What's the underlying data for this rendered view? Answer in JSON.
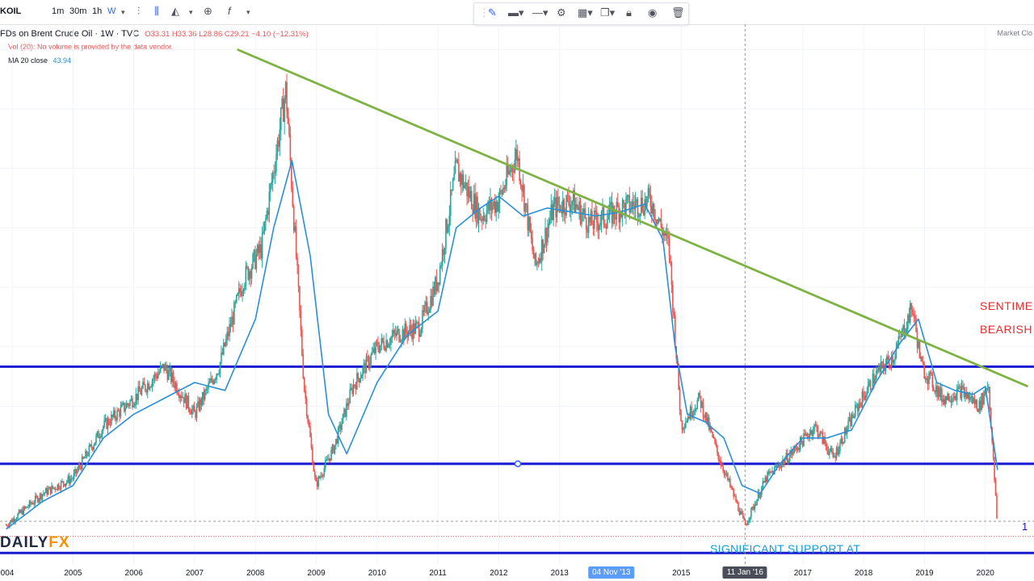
{
  "toolbar": {
    "symbol": "KOIL",
    "timeframes": [
      "1m",
      "30m",
      "1h",
      "W"
    ],
    "active_timeframe": "W"
  },
  "legend": {
    "title": "FDs on Brent Crude Oil · 1W · TVC",
    "ohlc": "O33.31 H33.36 L28.86 C29.21 −4.10 (−12.31%)",
    "volume_note": "Vol (20): No volume is provided by the data vendor.",
    "ma_label": "MA 20 close",
    "ma_value": "43.94",
    "market_status": "Market Clo"
  },
  "annotations": {
    "sentiment_1": "SENTIME",
    "sentiment_2": "BEARISH",
    "support": "SIGNIFICANT SUPPORT AT",
    "right_number": "1"
  },
  "logo": {
    "main": "DAILY",
    "accent": "FX"
  },
  "colors": {
    "up": "#26a69a",
    "down": "#ef5350",
    "ma": "#2a8fd6",
    "trendline": "#7cb342",
    "hline": "#1a1ad0"
  },
  "chart_data": {
    "type": "line",
    "symbol": "Brent Crude Oil",
    "interval": "1W",
    "x_tick_labels": [
      "004",
      "2005",
      "2006",
      "2007",
      "2008",
      "2009",
      "2010",
      "2011",
      "2012",
      "2013",
      "2015",
      "2017",
      "2018",
      "2019",
      "2020"
    ],
    "crosshair_labels": [
      "04 Nov '13",
      "11 Jan '16"
    ],
    "series": [
      {
        "name": "Brent Crude Oil",
        "x": [
          2003.9,
          2004.5,
          2005.0,
          2005.5,
          2006.0,
          2006.5,
          2007.0,
          2007.4,
          2007.8,
          2008.1,
          2008.5,
          2008.8,
          2008.99,
          2009.3,
          2009.6,
          2010.0,
          2010.3,
          2010.7,
          2011.0,
          2011.3,
          2011.7,
          2012.0,
          2012.3,
          2012.6,
          2012.9,
          2013.2,
          2013.5,
          2013.8,
          2014.0,
          2014.3,
          2014.5,
          2014.8,
          2015.0,
          2015.3,
          2015.6,
          2015.9,
          2016.05,
          2016.4,
          2016.8,
          2017.2,
          2017.5,
          2017.9,
          2018.2,
          2018.5,
          2018.8,
          2018.95,
          2019.3,
          2019.6,
          2019.9,
          2020.05,
          2020.2
        ],
        "values": [
          30,
          38,
          42,
          55,
          62,
          70,
          58,
          70,
          92,
          100,
          140,
          65,
          40,
          50,
          65,
          75,
          78,
          80,
          92,
          120,
          108,
          112,
          124,
          95,
          110,
          112,
          106,
          108,
          110,
          111,
          112,
          100,
          55,
          62,
          48,
          36,
          30,
          42,
          48,
          55,
          47,
          60,
          68,
          73,
          85,
          70,
          62,
          64,
          60,
          66,
          29.21
        ]
      },
      {
        "name": "MA 20 close",
        "x": [
          2003.9,
          2004.5,
          2005.0,
          2005.5,
          2006.0,
          2006.5,
          2007.0,
          2007.5,
          2008.0,
          2008.3,
          2008.6,
          2008.9,
          2009.2,
          2009.5,
          2010.0,
          2010.5,
          2011.0,
          2011.3,
          2011.7,
          2012.0,
          2012.4,
          2012.8,
          2013.2,
          2013.6,
          2014.0,
          2014.4,
          2014.7,
          2014.9,
          2015.1,
          2015.4,
          2015.7,
          2016.0,
          2016.3,
          2016.6,
          2017.0,
          2017.4,
          2017.8,
          2018.2,
          2018.6,
          2018.9,
          2019.2,
          2019.5,
          2019.8,
          2020.0,
          2020.2
        ],
        "values": [
          29,
          36,
          40,
          52,
          58,
          62,
          66,
          64,
          82,
          105,
          122,
          98,
          58,
          48,
          66,
          78,
          84,
          105,
          110,
          113,
          108,
          110,
          109,
          108,
          109,
          111,
          102,
          75,
          58,
          56,
          52,
          40,
          38,
          45,
          52,
          52,
          54,
          66,
          76,
          82,
          66,
          64,
          63,
          65,
          43.94
        ]
      }
    ],
    "trendline": {
      "x": [
        2007.7,
        2020.7
      ],
      "y": [
        150,
        65
      ]
    },
    "horizontal_levels": [
      70,
      45.5,
      23
    ],
    "ylim": [
      20,
      155
    ],
    "xlim": [
      2003.8,
      2020.8
    ],
    "grid": true
  }
}
